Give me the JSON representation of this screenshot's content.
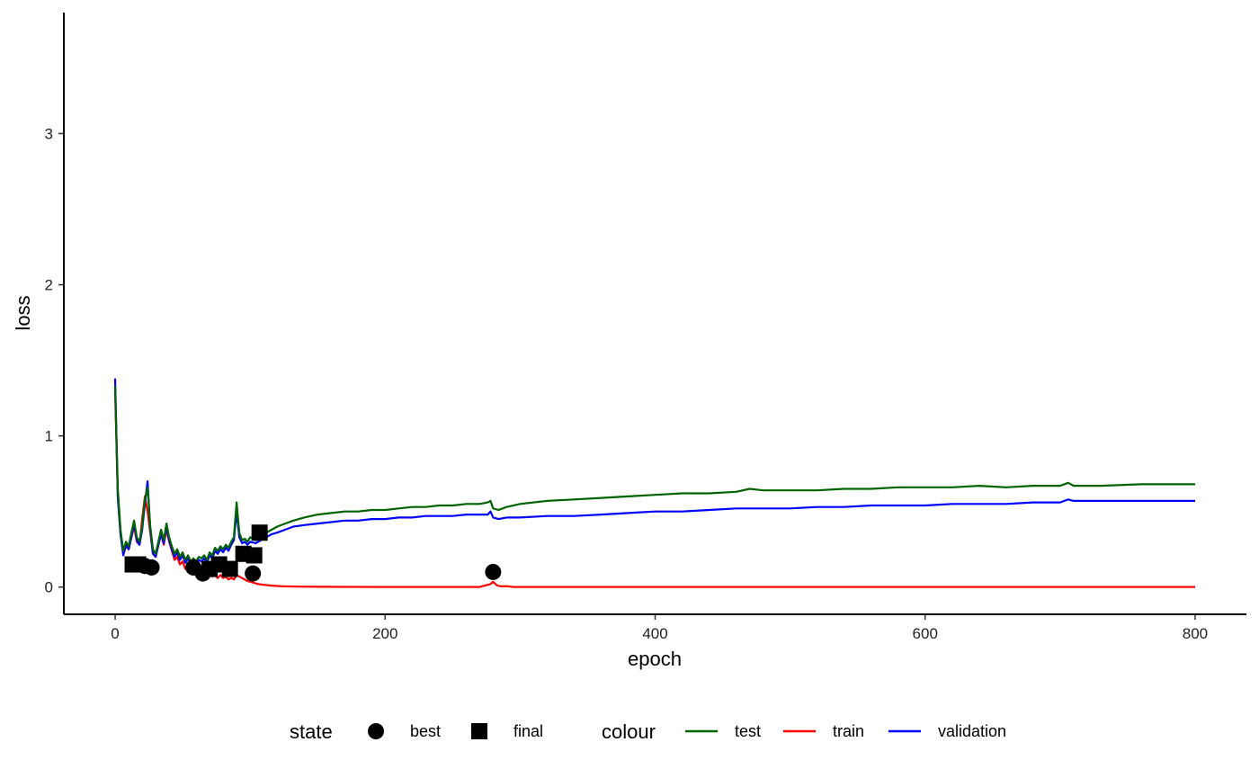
{
  "chart_data": {
    "type": "line",
    "xlabel": "epoch",
    "ylabel": "loss",
    "xlim": [
      -38,
      838
    ],
    "ylim": [
      -0.18,
      3.8
    ],
    "x_ticks": [
      0,
      200,
      400,
      600,
      800
    ],
    "y_ticks": [
      0,
      1,
      2,
      3
    ],
    "grid": false,
    "legend_position": "bottom",
    "legends": {
      "state": {
        "title": "state",
        "entries": [
          {
            "label": "best",
            "shape": "circle"
          },
          {
            "label": "final",
            "shape": "square"
          }
        ]
      },
      "colour": {
        "title": "colour",
        "entries": [
          {
            "label": "test",
            "color": "#006400"
          },
          {
            "label": "train",
            "color": "#ff0000"
          },
          {
            "label": "validation",
            "color": "#0000ff"
          }
        ]
      }
    },
    "series": [
      {
        "name": "test",
        "color": "#006400",
        "points": [
          [
            0,
            1.33
          ],
          [
            2,
            0.65
          ],
          [
            4,
            0.38
          ],
          [
            6,
            0.24
          ],
          [
            8,
            0.3
          ],
          [
            10,
            0.27
          ],
          [
            12,
            0.36
          ],
          [
            14,
            0.44
          ],
          [
            16,
            0.33
          ],
          [
            18,
            0.3
          ],
          [
            20,
            0.4
          ],
          [
            22,
            0.58
          ],
          [
            24,
            0.66
          ],
          [
            26,
            0.4
          ],
          [
            28,
            0.25
          ],
          [
            30,
            0.22
          ],
          [
            32,
            0.3
          ],
          [
            34,
            0.38
          ],
          [
            36,
            0.31
          ],
          [
            38,
            0.42
          ],
          [
            40,
            0.33
          ],
          [
            42,
            0.27
          ],
          [
            44,
            0.22
          ],
          [
            46,
            0.25
          ],
          [
            48,
            0.2
          ],
          [
            50,
            0.23
          ],
          [
            52,
            0.18
          ],
          [
            54,
            0.21
          ],
          [
            56,
            0.17
          ],
          [
            58,
            0.19
          ],
          [
            60,
            0.17
          ],
          [
            62,
            0.2
          ],
          [
            64,
            0.19
          ],
          [
            66,
            0.21
          ],
          [
            68,
            0.18
          ],
          [
            70,
            0.23
          ],
          [
            72,
            0.21
          ],
          [
            74,
            0.26
          ],
          [
            76,
            0.24
          ],
          [
            78,
            0.27
          ],
          [
            80,
            0.25
          ],
          [
            82,
            0.28
          ],
          [
            84,
            0.26
          ],
          [
            86,
            0.3
          ],
          [
            88,
            0.33
          ],
          [
            90,
            0.56
          ],
          [
            92,
            0.36
          ],
          [
            94,
            0.31
          ],
          [
            96,
            0.32
          ],
          [
            98,
            0.3
          ],
          [
            100,
            0.33
          ],
          [
            104,
            0.31
          ],
          [
            108,
            0.34
          ],
          [
            112,
            0.36
          ],
          [
            116,
            0.38
          ],
          [
            120,
            0.4
          ],
          [
            126,
            0.42
          ],
          [
            132,
            0.44
          ],
          [
            140,
            0.46
          ],
          [
            150,
            0.48
          ],
          [
            160,
            0.49
          ],
          [
            170,
            0.5
          ],
          [
            180,
            0.5
          ],
          [
            190,
            0.51
          ],
          [
            200,
            0.51
          ],
          [
            210,
            0.52
          ],
          [
            220,
            0.53
          ],
          [
            230,
            0.53
          ],
          [
            240,
            0.54
          ],
          [
            250,
            0.54
          ],
          [
            260,
            0.55
          ],
          [
            270,
            0.55
          ],
          [
            276,
            0.56
          ],
          [
            278,
            0.57
          ],
          [
            280,
            0.52
          ],
          [
            284,
            0.51
          ],
          [
            290,
            0.53
          ],
          [
            300,
            0.55
          ],
          [
            320,
            0.57
          ],
          [
            340,
            0.58
          ],
          [
            360,
            0.59
          ],
          [
            380,
            0.6
          ],
          [
            400,
            0.61
          ],
          [
            420,
            0.62
          ],
          [
            440,
            0.62
          ],
          [
            460,
            0.63
          ],
          [
            470,
            0.65
          ],
          [
            480,
            0.64
          ],
          [
            500,
            0.64
          ],
          [
            520,
            0.64
          ],
          [
            540,
            0.65
          ],
          [
            560,
            0.65
          ],
          [
            580,
            0.66
          ],
          [
            600,
            0.66
          ],
          [
            620,
            0.66
          ],
          [
            640,
            0.67
          ],
          [
            660,
            0.66
          ],
          [
            680,
            0.67
          ],
          [
            700,
            0.67
          ],
          [
            706,
            0.69
          ],
          [
            710,
            0.67
          ],
          [
            730,
            0.67
          ],
          [
            760,
            0.68
          ],
          [
            800,
            0.68
          ]
        ]
      },
      {
        "name": "train",
        "color": "#ff0000",
        "points": [
          [
            0,
            1.3
          ],
          [
            2,
            0.6
          ],
          [
            4,
            0.35
          ],
          [
            6,
            0.22
          ],
          [
            8,
            0.27
          ],
          [
            10,
            0.25
          ],
          [
            12,
            0.33
          ],
          [
            14,
            0.4
          ],
          [
            16,
            0.3
          ],
          [
            18,
            0.28
          ],
          [
            20,
            0.45
          ],
          [
            22,
            0.6
          ],
          [
            24,
            0.5
          ],
          [
            26,
            0.36
          ],
          [
            28,
            0.22
          ],
          [
            30,
            0.2
          ],
          [
            32,
            0.28
          ],
          [
            34,
            0.35
          ],
          [
            36,
            0.28
          ],
          [
            38,
            0.38
          ],
          [
            40,
            0.3
          ],
          [
            42,
            0.24
          ],
          [
            44,
            0.18
          ],
          [
            46,
            0.2
          ],
          [
            48,
            0.15
          ],
          [
            50,
            0.17
          ],
          [
            52,
            0.12
          ],
          [
            54,
            0.14
          ],
          [
            56,
            0.1
          ],
          [
            58,
            0.12
          ],
          [
            60,
            0.09
          ],
          [
            62,
            0.11
          ],
          [
            64,
            0.08
          ],
          [
            66,
            0.1
          ],
          [
            68,
            0.07
          ],
          [
            70,
            0.09
          ],
          [
            72,
            0.07
          ],
          [
            74,
            0.08
          ],
          [
            76,
            0.06
          ],
          [
            78,
            0.08
          ],
          [
            80,
            0.06
          ],
          [
            82,
            0.07
          ],
          [
            84,
            0.05
          ],
          [
            86,
            0.06
          ],
          [
            88,
            0.05
          ],
          [
            90,
            0.08
          ],
          [
            94,
            0.06
          ],
          [
            98,
            0.04
          ],
          [
            102,
            0.03
          ],
          [
            106,
            0.02
          ],
          [
            110,
            0.015
          ],
          [
            116,
            0.01
          ],
          [
            124,
            0.005
          ],
          [
            135,
            0.003
          ],
          [
            150,
            0.002
          ],
          [
            200,
            0.001
          ],
          [
            270,
            0.001
          ],
          [
            278,
            0.02
          ],
          [
            280,
            0.035
          ],
          [
            283,
            0.01
          ],
          [
            286,
            0.005
          ],
          [
            290,
            0.006
          ],
          [
            295,
            0.001
          ],
          [
            400,
            0.001
          ],
          [
            600,
            0.001
          ],
          [
            800,
            0.001
          ]
        ]
      },
      {
        "name": "validation",
        "color": "#0000ff",
        "points": [
          [
            0,
            1.38
          ],
          [
            2,
            0.6
          ],
          [
            4,
            0.35
          ],
          [
            6,
            0.21
          ],
          [
            8,
            0.28
          ],
          [
            10,
            0.25
          ],
          [
            12,
            0.33
          ],
          [
            14,
            0.42
          ],
          [
            16,
            0.31
          ],
          [
            18,
            0.28
          ],
          [
            20,
            0.38
          ],
          [
            22,
            0.55
          ],
          [
            24,
            0.7
          ],
          [
            26,
            0.38
          ],
          [
            28,
            0.22
          ],
          [
            30,
            0.2
          ],
          [
            32,
            0.28
          ],
          [
            34,
            0.35
          ],
          [
            36,
            0.29
          ],
          [
            38,
            0.4
          ],
          [
            40,
            0.31
          ],
          [
            42,
            0.25
          ],
          [
            44,
            0.2
          ],
          [
            46,
            0.23
          ],
          [
            48,
            0.18
          ],
          [
            50,
            0.21
          ],
          [
            52,
            0.16
          ],
          [
            54,
            0.19
          ],
          [
            56,
            0.15
          ],
          [
            58,
            0.17
          ],
          [
            60,
            0.15
          ],
          [
            62,
            0.18
          ],
          [
            64,
            0.17
          ],
          [
            66,
            0.19
          ],
          [
            68,
            0.16
          ],
          [
            70,
            0.21
          ],
          [
            72,
            0.19
          ],
          [
            74,
            0.24
          ],
          [
            76,
            0.22
          ],
          [
            78,
            0.25
          ],
          [
            80,
            0.23
          ],
          [
            82,
            0.26
          ],
          [
            84,
            0.24
          ],
          [
            86,
            0.28
          ],
          [
            88,
            0.31
          ],
          [
            90,
            0.5
          ],
          [
            92,
            0.33
          ],
          [
            94,
            0.29
          ],
          [
            96,
            0.3
          ],
          [
            98,
            0.28
          ],
          [
            100,
            0.3
          ],
          [
            104,
            0.29
          ],
          [
            108,
            0.31
          ],
          [
            112,
            0.33
          ],
          [
            116,
            0.35
          ],
          [
            120,
            0.36
          ],
          [
            126,
            0.38
          ],
          [
            132,
            0.4
          ],
          [
            140,
            0.41
          ],
          [
            150,
            0.42
          ],
          [
            160,
            0.43
          ],
          [
            170,
            0.44
          ],
          [
            180,
            0.44
          ],
          [
            190,
            0.45
          ],
          [
            200,
            0.45
          ],
          [
            210,
            0.46
          ],
          [
            220,
            0.46
          ],
          [
            230,
            0.47
          ],
          [
            240,
            0.47
          ],
          [
            250,
            0.47
          ],
          [
            260,
            0.48
          ],
          [
            270,
            0.48
          ],
          [
            276,
            0.48
          ],
          [
            278,
            0.5
          ],
          [
            280,
            0.46
          ],
          [
            284,
            0.45
          ],
          [
            290,
            0.46
          ],
          [
            300,
            0.46
          ],
          [
            320,
            0.47
          ],
          [
            340,
            0.47
          ],
          [
            360,
            0.48
          ],
          [
            380,
            0.49
          ],
          [
            400,
            0.5
          ],
          [
            420,
            0.5
          ],
          [
            440,
            0.51
          ],
          [
            460,
            0.52
          ],
          [
            480,
            0.52
          ],
          [
            500,
            0.52
          ],
          [
            520,
            0.53
          ],
          [
            540,
            0.53
          ],
          [
            560,
            0.54
          ],
          [
            580,
            0.54
          ],
          [
            600,
            0.54
          ],
          [
            620,
            0.55
          ],
          [
            640,
            0.55
          ],
          [
            660,
            0.55
          ],
          [
            680,
            0.56
          ],
          [
            700,
            0.56
          ],
          [
            706,
            0.58
          ],
          [
            710,
            0.57
          ],
          [
            730,
            0.57
          ],
          [
            760,
            0.57
          ],
          [
            800,
            0.57
          ]
        ]
      }
    ],
    "markers": [
      {
        "state": "final",
        "x": 13,
        "y": 0.15
      },
      {
        "state": "final",
        "x": 17,
        "y": 0.15
      },
      {
        "state": "best",
        "x": 22,
        "y": 0.14
      },
      {
        "state": "best",
        "x": 27,
        "y": 0.13
      },
      {
        "state": "best",
        "x": 58,
        "y": 0.13
      },
      {
        "state": "best",
        "x": 65,
        "y": 0.09
      },
      {
        "state": "final",
        "x": 70,
        "y": 0.12
      },
      {
        "state": "final",
        "x": 77,
        "y": 0.15
      },
      {
        "state": "final",
        "x": 85,
        "y": 0.12
      },
      {
        "state": "final",
        "x": 95,
        "y": 0.22
      },
      {
        "state": "best",
        "x": 102,
        "y": 0.09
      },
      {
        "state": "final",
        "x": 103,
        "y": 0.21
      },
      {
        "state": "final",
        "x": 107,
        "y": 0.36
      },
      {
        "state": "best",
        "x": 280,
        "y": 0.1
      }
    ]
  }
}
